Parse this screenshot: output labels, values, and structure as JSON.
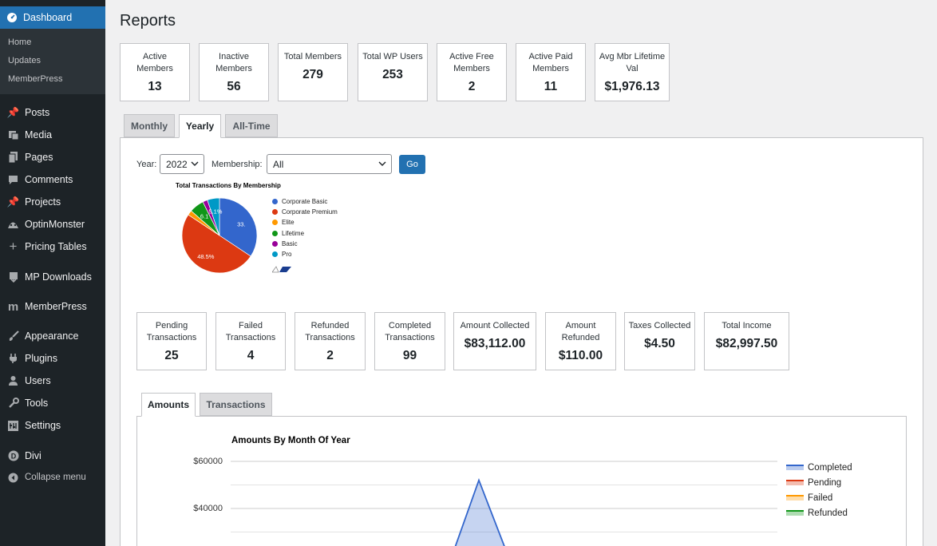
{
  "sidebar": {
    "dashboard": "Dashboard",
    "sub": [
      "Home",
      "Updates",
      "MemberPress"
    ],
    "items": [
      {
        "label": "Posts",
        "icon": "pin-icon"
      },
      {
        "label": "Media",
        "icon": "media-icon"
      },
      {
        "label": "Pages",
        "icon": "pages-icon"
      },
      {
        "label": "Comments",
        "icon": "comments-icon"
      },
      {
        "label": "Projects",
        "icon": "pin-icon"
      },
      {
        "label": "OptinMonster",
        "icon": "optinmonster-icon"
      },
      {
        "label": "Pricing Tables",
        "icon": "plus-icon"
      },
      {
        "label": "MP Downloads",
        "icon": "download-icon"
      },
      {
        "label": "MemberPress",
        "icon": "memberpress-icon"
      },
      {
        "label": "Appearance",
        "icon": "brush-icon"
      },
      {
        "label": "Plugins",
        "icon": "plugin-icon"
      },
      {
        "label": "Users",
        "icon": "user-icon"
      },
      {
        "label": "Tools",
        "icon": "wrench-icon"
      },
      {
        "label": "Settings",
        "icon": "settings-icon"
      },
      {
        "label": "Divi",
        "icon": "divi-icon"
      },
      {
        "label": "Collapse menu",
        "icon": "collapse-icon"
      }
    ]
  },
  "page_title": "Reports",
  "member_stats": [
    {
      "label": "Active Members",
      "value": "13"
    },
    {
      "label": "Inactive Members",
      "value": "56"
    },
    {
      "label": "Total Members",
      "value": "279"
    },
    {
      "label": "Total WP Users",
      "value": "253"
    },
    {
      "label": "Active Free Members",
      "value": "2"
    },
    {
      "label": "Active Paid Members",
      "value": "11"
    },
    {
      "label": "Avg Mbr Lifetime Val",
      "value": "$1,976.13"
    }
  ],
  "period_tabs": [
    "Monthly",
    "Yearly",
    "All-Time"
  ],
  "filters": {
    "year_label": "Year:",
    "year_value": "2022",
    "membership_label": "Membership:",
    "membership_value": "All",
    "go": "Go"
  },
  "transaction_stats": [
    {
      "label": "Pending Transactions",
      "value": "25"
    },
    {
      "label": "Failed Transactions",
      "value": "4"
    },
    {
      "label": "Refunded Transactions",
      "value": "2"
    },
    {
      "label": "Completed Transactions",
      "value": "99"
    },
    {
      "label": "Amount Collected",
      "value": "$83,112.00"
    },
    {
      "label": "Amount Refunded",
      "value": "$110.00"
    },
    {
      "label": "Taxes Collected",
      "value": "$4.50"
    },
    {
      "label": "Total Income",
      "value": "$82,997.50"
    }
  ],
  "bottom_tabs": [
    "Amounts",
    "Transactions"
  ],
  "chart_data": [
    {
      "type": "pie",
      "title": "Total Transactions By Membership",
      "categories": [
        "Corporate Basic",
        "Corporate Premium",
        "Elite",
        "Lifetime",
        "Basic",
        "Pro"
      ],
      "colors": [
        "#3366cc",
        "#dc3912",
        "#ff9900",
        "#109618",
        "#990099",
        "#0099c6"
      ],
      "values": [
        33.3,
        48.5,
        2.0,
        6.1,
        2.0,
        5.1
      ],
      "slice_labels": [
        "33.",
        "48.5%",
        "",
        "6.1",
        "",
        "5.1%"
      ]
    },
    {
      "type": "area",
      "title": "Amounts By Month Of Year",
      "yticks": [
        "$60000",
        "$40000"
      ],
      "ylim": [
        0,
        70000
      ],
      "series": [
        {
          "name": "Completed",
          "color": "#3366cc"
        },
        {
          "name": "Pending",
          "color": "#dc3912"
        },
        {
          "name": "Failed",
          "color": "#ff9900"
        },
        {
          "name": "Refunded",
          "color": "#109618"
        }
      ],
      "completed_peak": 52000
    }
  ]
}
